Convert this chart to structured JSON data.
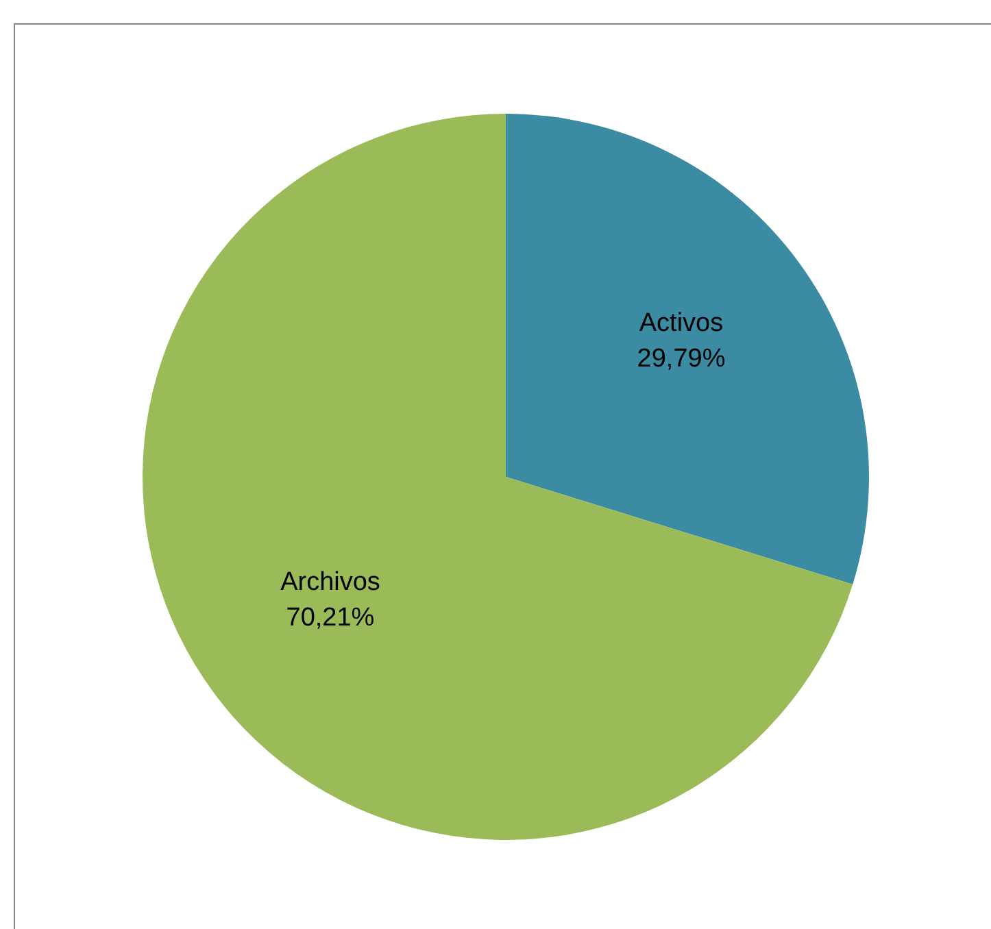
{
  "chart_data": {
    "type": "pie",
    "categories": [
      "Activos",
      "Archivos"
    ],
    "values": [
      29.79,
      70.21
    ],
    "colors": [
      "#3b8ca3",
      "#9bbb59"
    ],
    "value_labels": [
      "29,79%",
      "70,21%"
    ]
  }
}
